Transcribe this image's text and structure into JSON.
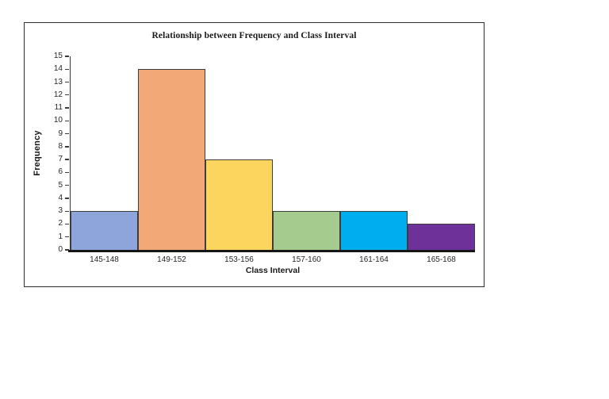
{
  "chart_data": {
    "type": "bar",
    "subtype": "histogram",
    "title": "Relationship between Frequency and Class Interval",
    "xlabel": "Class Interval",
    "ylabel": "Frequency",
    "categories": [
      "145-148",
      "149-152",
      "153-156",
      "157-160",
      "161-164",
      "165-168"
    ],
    "values": [
      3,
      14,
      7,
      3,
      3,
      2
    ],
    "bar_colors": [
      "#8EA5DB",
      "#F2A977",
      "#FCD55F",
      "#A5CC8E",
      "#00AEEF",
      "#6E3199"
    ],
    "ylim": [
      0,
      15
    ],
    "ytick_step": 1,
    "grid": "off",
    "legend": "none",
    "bars_touching": true,
    "styles": {
      "bar_border_color": "#3d3d3d",
      "axis_color": "#3a3a3a",
      "baseline_color": "#161616",
      "frame_border_color": "#2e2e2e",
      "text_color": "#262626"
    }
  }
}
